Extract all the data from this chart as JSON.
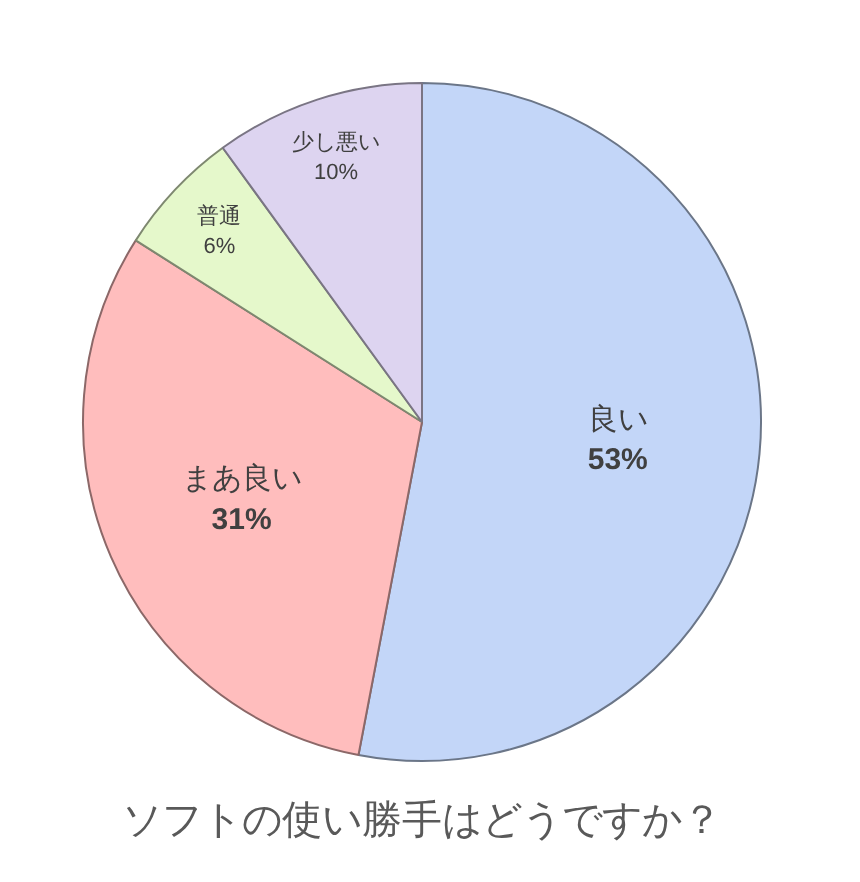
{
  "chart_data": {
    "type": "pie",
    "title": "ソフトの使い勝手はどうですか？",
    "categories": [
      "良い",
      "まあ良い",
      "普通",
      "少し悪い"
    ],
    "values": [
      53,
      31,
      6,
      10
    ],
    "colors": [
      "#c3d6f8",
      "#ffbdbd",
      "#e5f8cb",
      "#ddd4f0"
    ],
    "value_labels": [
      "53%",
      "31%",
      "6%",
      "10%"
    ]
  }
}
